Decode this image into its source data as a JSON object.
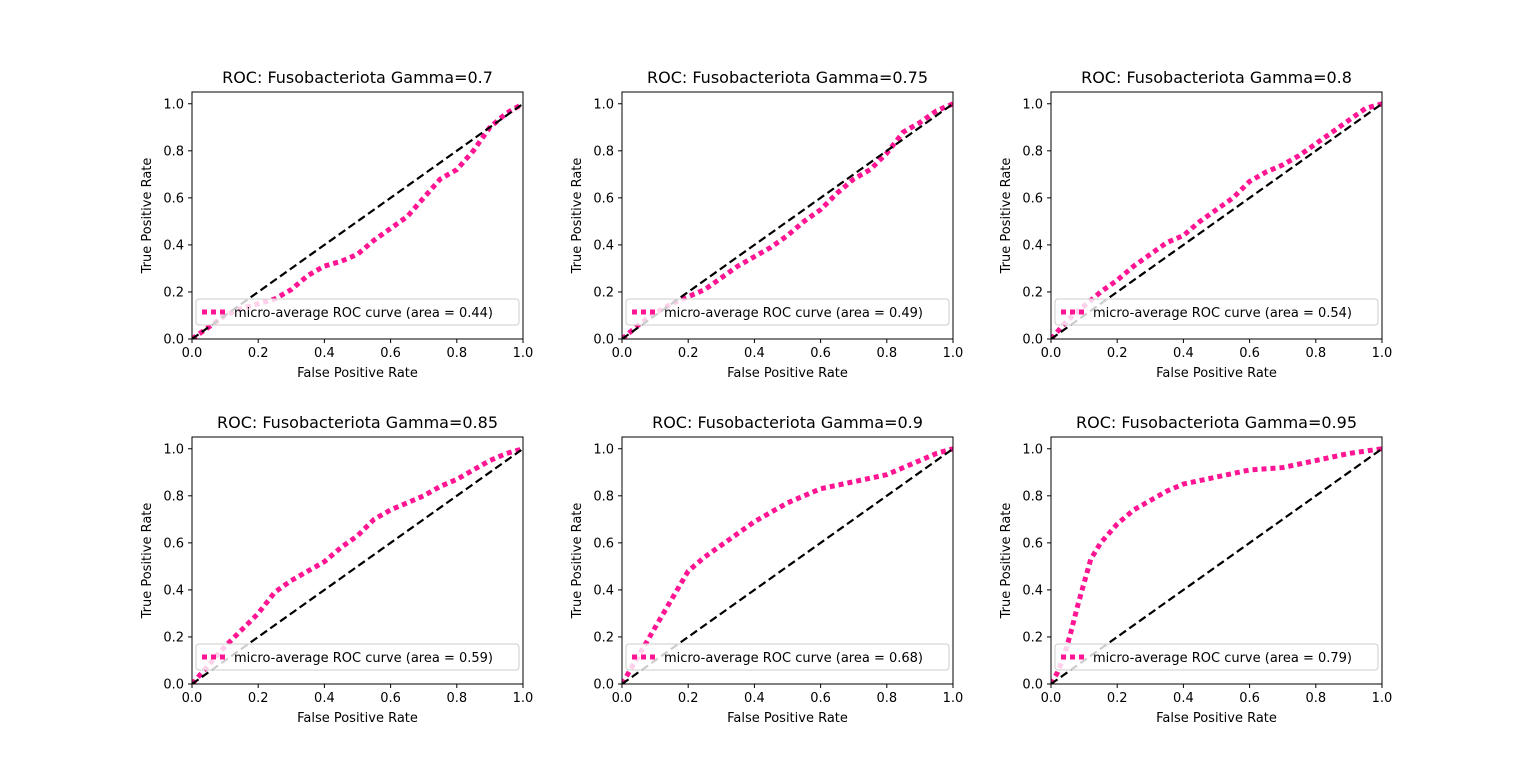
{
  "chart_data": [
    {
      "type": "line",
      "title": "ROC: Fusobacteriota Gamma=0.7",
      "xlabel": "False Positive Rate",
      "ylabel": "True Positive Rate",
      "xlim": [
        0,
        1
      ],
      "ylim": [
        0,
        1.05
      ],
      "xticks": [
        "0.0",
        "0.2",
        "0.4",
        "0.6",
        "0.8",
        "1.0"
      ],
      "yticks": [
        "0.0",
        "0.2",
        "0.4",
        "0.6",
        "0.8",
        "1.0"
      ],
      "legend_position": "lower right",
      "series": [
        {
          "name": "micro-average ROC curve (area = 0.44)",
          "color": "#ff1493",
          "style": "dotted",
          "x": [
            0,
            0.05,
            0.1,
            0.15,
            0.2,
            0.25,
            0.3,
            0.35,
            0.4,
            0.45,
            0.5,
            0.55,
            0.6,
            0.65,
            0.7,
            0.75,
            0.8,
            0.85,
            0.9,
            0.95,
            1.0
          ],
          "y": [
            0,
            0.05,
            0.1,
            0.13,
            0.15,
            0.17,
            0.21,
            0.27,
            0.31,
            0.33,
            0.36,
            0.42,
            0.47,
            0.52,
            0.6,
            0.68,
            0.72,
            0.8,
            0.9,
            0.96,
            1.0
          ]
        },
        {
          "color": "#000000",
          "style": "dashed",
          "x": [
            0,
            1
          ],
          "y": [
            0,
            1
          ]
        }
      ]
    },
    {
      "type": "line",
      "title": "ROC: Fusobacteriota Gamma=0.75",
      "xlabel": "False Positive Rate",
      "ylabel": "True Positive Rate",
      "xlim": [
        0,
        1
      ],
      "ylim": [
        0,
        1.05
      ],
      "xticks": [
        "0.0",
        "0.2",
        "0.4",
        "0.6",
        "0.8",
        "1.0"
      ],
      "yticks": [
        "0.0",
        "0.2",
        "0.4",
        "0.6",
        "0.8",
        "1.0"
      ],
      "legend_position": "lower right",
      "series": [
        {
          "name": "micro-average ROC curve (area = 0.49)",
          "color": "#ff1493",
          "style": "dotted",
          "x": [
            0,
            0.05,
            0.1,
            0.15,
            0.2,
            0.25,
            0.3,
            0.35,
            0.4,
            0.45,
            0.5,
            0.55,
            0.6,
            0.65,
            0.7,
            0.75,
            0.8,
            0.85,
            0.9,
            0.95,
            1.0
          ],
          "y": [
            0,
            0.06,
            0.11,
            0.15,
            0.18,
            0.21,
            0.26,
            0.31,
            0.35,
            0.39,
            0.44,
            0.5,
            0.55,
            0.62,
            0.68,
            0.72,
            0.79,
            0.88,
            0.92,
            0.97,
            1.0
          ]
        },
        {
          "color": "#000000",
          "style": "dashed",
          "x": [
            0,
            1
          ],
          "y": [
            0,
            1
          ]
        }
      ]
    },
    {
      "type": "line",
      "title": "ROC: Fusobacteriota Gamma=0.8",
      "xlabel": "False Positive Rate",
      "ylabel": "True Positive Rate",
      "xlim": [
        0,
        1
      ],
      "ylim": [
        0,
        1.05
      ],
      "xticks": [
        "0.0",
        "0.2",
        "0.4",
        "0.6",
        "0.8",
        "1.0"
      ],
      "yticks": [
        "0.0",
        "0.2",
        "0.4",
        "0.6",
        "0.8",
        "1.0"
      ],
      "legend_position": "lower right",
      "series": [
        {
          "name": "micro-average ROC curve (area = 0.54)",
          "color": "#ff1493",
          "style": "dotted",
          "x": [
            0,
            0.05,
            0.1,
            0.15,
            0.2,
            0.25,
            0.3,
            0.35,
            0.4,
            0.45,
            0.5,
            0.55,
            0.6,
            0.65,
            0.7,
            0.75,
            0.8,
            0.85,
            0.9,
            0.95,
            1.0
          ],
          "y": [
            0,
            0.08,
            0.14,
            0.2,
            0.25,
            0.31,
            0.36,
            0.41,
            0.44,
            0.5,
            0.55,
            0.6,
            0.67,
            0.71,
            0.74,
            0.78,
            0.83,
            0.88,
            0.93,
            0.98,
            1.0
          ]
        },
        {
          "color": "#000000",
          "style": "dashed",
          "x": [
            0,
            1
          ],
          "y": [
            0,
            1
          ]
        }
      ]
    },
    {
      "type": "line",
      "title": "ROC: Fusobacteriota Gamma=0.85",
      "xlabel": "False Positive Rate",
      "ylabel": "True Positive Rate",
      "xlim": [
        0,
        1
      ],
      "ylim": [
        0,
        1.05
      ],
      "xticks": [
        "0.0",
        "0.2",
        "0.4",
        "0.6",
        "0.8",
        "1.0"
      ],
      "yticks": [
        "0.0",
        "0.2",
        "0.4",
        "0.6",
        "0.8",
        "1.0"
      ],
      "legend_position": "lower right",
      "series": [
        {
          "name": "micro-average ROC curve (area = 0.59)",
          "color": "#ff1493",
          "style": "dotted",
          "x": [
            0,
            0.05,
            0.1,
            0.15,
            0.2,
            0.25,
            0.3,
            0.35,
            0.4,
            0.45,
            0.5,
            0.55,
            0.6,
            0.65,
            0.7,
            0.75,
            0.8,
            0.85,
            0.9,
            0.95,
            1.0
          ],
          "y": [
            0,
            0.08,
            0.16,
            0.23,
            0.3,
            0.39,
            0.44,
            0.48,
            0.52,
            0.58,
            0.63,
            0.7,
            0.74,
            0.77,
            0.8,
            0.84,
            0.87,
            0.91,
            0.95,
            0.98,
            1.0
          ]
        },
        {
          "color": "#000000",
          "style": "dashed",
          "x": [
            0,
            1
          ],
          "y": [
            0,
            1
          ]
        }
      ]
    },
    {
      "type": "line",
      "title": "ROC: Fusobacteriota Gamma=0.9",
      "xlabel": "False Positive Rate",
      "ylabel": "True Positive Rate",
      "xlim": [
        0,
        1
      ],
      "ylim": [
        0,
        1.05
      ],
      "xticks": [
        "0.0",
        "0.2",
        "0.4",
        "0.6",
        "0.8",
        "1.0"
      ],
      "yticks": [
        "0.0",
        "0.2",
        "0.4",
        "0.6",
        "0.8",
        "1.0"
      ],
      "legend_position": "lower right",
      "series": [
        {
          "name": "micro-average ROC curve (area = 0.68)",
          "color": "#ff1493",
          "style": "dotted",
          "x": [
            0,
            0.025,
            0.05,
            0.1,
            0.15,
            0.2,
            0.25,
            0.3,
            0.35,
            0.4,
            0.45,
            0.5,
            0.55,
            0.6,
            0.7,
            0.8,
            0.85,
            0.9,
            0.95,
            1.0
          ],
          "y": [
            0,
            0.06,
            0.12,
            0.24,
            0.36,
            0.48,
            0.54,
            0.59,
            0.64,
            0.69,
            0.73,
            0.77,
            0.8,
            0.83,
            0.86,
            0.89,
            0.92,
            0.95,
            0.98,
            1.0
          ]
        },
        {
          "color": "#000000",
          "style": "dashed",
          "x": [
            0,
            1
          ],
          "y": [
            0,
            1
          ]
        }
      ]
    },
    {
      "type": "line",
      "title": "ROC: Fusobacteriota Gamma=0.95",
      "xlabel": "False Positive Rate",
      "ylabel": "True Positive Rate",
      "xlim": [
        0,
        1
      ],
      "ylim": [
        0,
        1.05
      ],
      "xticks": [
        "0.0",
        "0.2",
        "0.4",
        "0.6",
        "0.8",
        "1.0"
      ],
      "yticks": [
        "0.0",
        "0.2",
        "0.4",
        "0.6",
        "0.8",
        "1.0"
      ],
      "legend_position": "lower right",
      "series": [
        {
          "name": "micro-average ROC curve (area = 0.79)",
          "color": "#ff1493",
          "style": "dotted",
          "x": [
            0,
            0.02,
            0.04,
            0.06,
            0.08,
            0.1,
            0.12,
            0.15,
            0.2,
            0.25,
            0.3,
            0.35,
            0.4,
            0.5,
            0.6,
            0.7,
            0.8,
            0.9,
            1.0
          ],
          "y": [
            0,
            0.05,
            0.12,
            0.22,
            0.33,
            0.43,
            0.53,
            0.6,
            0.68,
            0.74,
            0.78,
            0.82,
            0.85,
            0.88,
            0.91,
            0.92,
            0.95,
            0.98,
            1.0
          ]
        },
        {
          "color": "#000000",
          "style": "dashed",
          "x": [
            0,
            1
          ],
          "y": [
            0,
            1
          ]
        }
      ]
    }
  ]
}
